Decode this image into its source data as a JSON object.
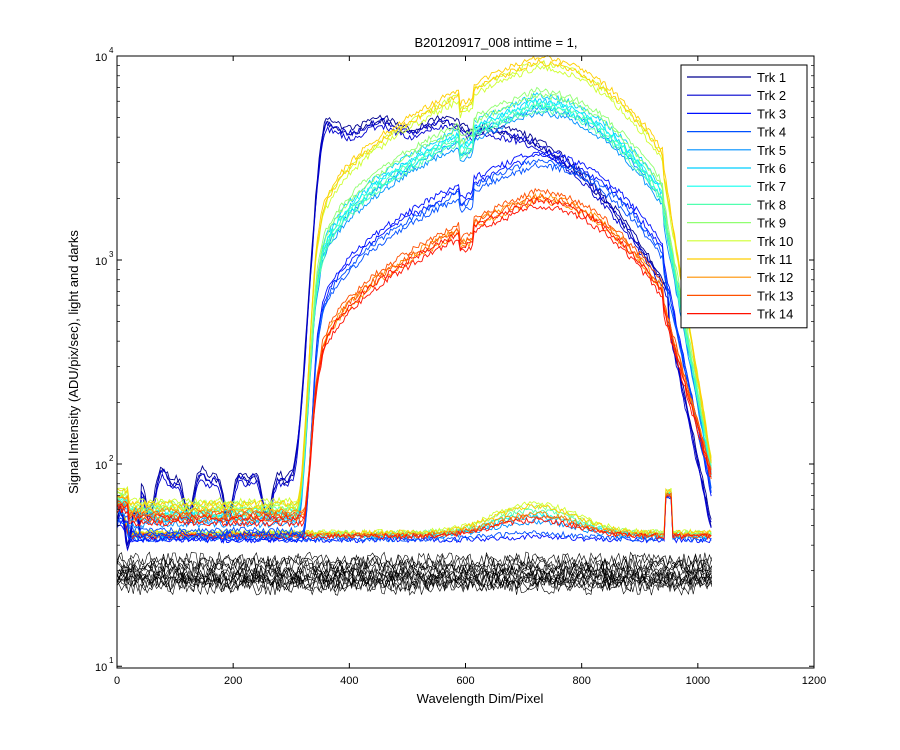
{
  "chart_data": {
    "type": "line",
    "title": "B20120917_008 inttime = 1,",
    "xlabel": "Wavelength Dim/Pixel",
    "ylabel": "Signal Intensity (ADU/pix/sec), light and darks",
    "xlim": [
      0,
      1200
    ],
    "ylim": [
      10,
      10000
    ],
    "yscale": "log",
    "xticks": [
      0,
      200,
      400,
      600,
      800,
      1000,
      1200
    ],
    "yticks": [
      10,
      100,
      1000,
      10000
    ],
    "ytick_base": "10",
    "ytick_exponents": [
      "1",
      "2",
      "3",
      "4"
    ],
    "legend_position": "top-right",
    "dark_color": "#000000",
    "series": [
      {
        "name": "Trk 1",
        "color": "#00008f",
        "type": "blue_edge",
        "scale": 1.0,
        "dark": 34
      },
      {
        "name": "Trk 2",
        "color": "#0000cf",
        "type": "blue_edge",
        "scale": 0.95,
        "dark": 33
      },
      {
        "name": "Trk 3",
        "color": "#0010ff",
        "type": "mid",
        "peak": 3300,
        "dark": 32,
        "flat": 44
      },
      {
        "name": "Trk 4",
        "color": "#0050ff",
        "type": "mid",
        "peak": 3000,
        "dark": 31,
        "flat": 46
      },
      {
        "name": "Trk 5",
        "color": "#0090ff",
        "type": "high",
        "peak": 5400,
        "dark": 30,
        "flat": 52
      },
      {
        "name": "Trk 6",
        "color": "#00cfff",
        "type": "high",
        "peak": 6200,
        "dark": 29,
        "flat": 55
      },
      {
        "name": "Trk 7",
        "color": "#10ffef",
        "type": "high",
        "peak": 5800,
        "dark": 29,
        "flat": 57
      },
      {
        "name": "Trk 8",
        "color": "#50ffaf",
        "type": "high",
        "peak": 5600,
        "dark": 28,
        "flat": 59
      },
      {
        "name": "Trk 9",
        "color": "#90ff70",
        "type": "high",
        "peak": 6600,
        "dark": 28,
        "flat": 62
      },
      {
        "name": "Trk 10",
        "color": "#cfff30",
        "type": "high",
        "peak": 9000,
        "dark": 27,
        "flat": 64
      },
      {
        "name": "Trk 11",
        "color": "#ffcf00",
        "type": "high",
        "peak": 9600,
        "dark": 27,
        "flat": 62
      },
      {
        "name": "Trk 12",
        "color": "#ff9000",
        "type": "low",
        "peak": 2000,
        "dark": 26,
        "flat": 57
      },
      {
        "name": "Trk 13",
        "color": "#ff5000",
        "type": "low",
        "peak": 2100,
        "dark": 26,
        "flat": 55
      },
      {
        "name": "Trk 14",
        "color": "#ff1000",
        "type": "low",
        "peak": 1900,
        "dark": 25,
        "flat": 53
      }
    ]
  }
}
